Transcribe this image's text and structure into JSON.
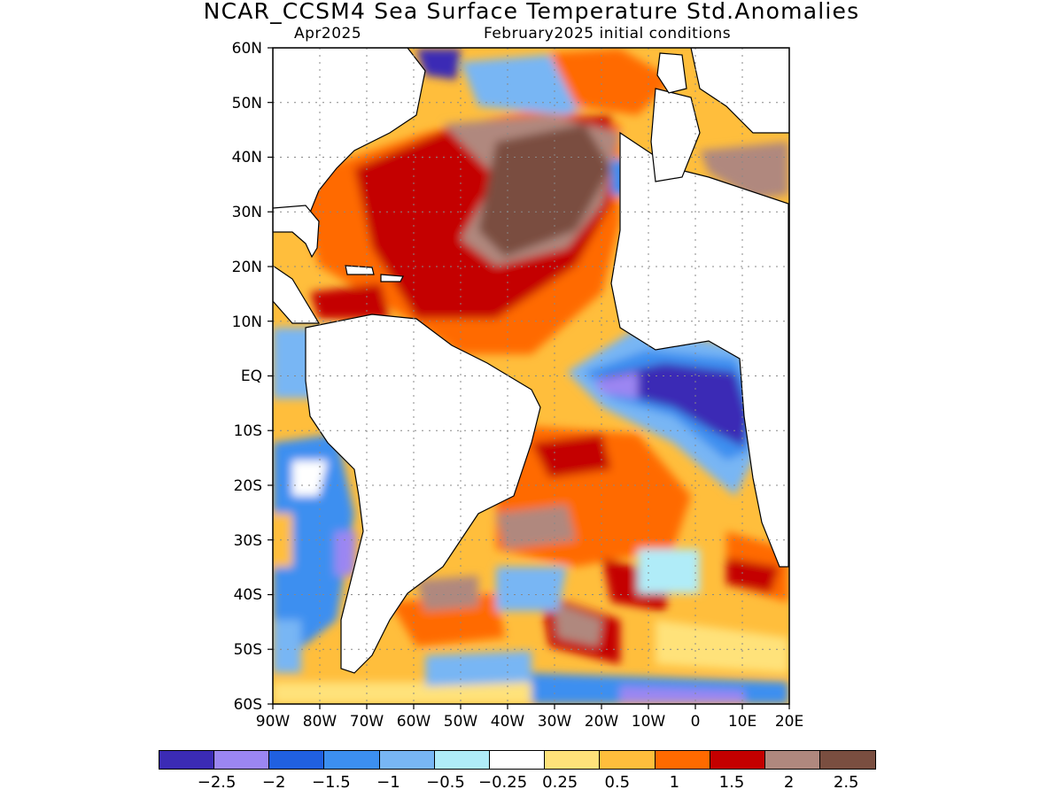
{
  "title": "NCAR_CCSM4 Sea Surface Temperature Std.Anomalies",
  "subtitle_left": "Apr2025",
  "subtitle_right": "February2025 initial conditions",
  "lat_labels": [
    "60N",
    "50N",
    "40N",
    "30N",
    "20N",
    "10N",
    "EQ",
    "10S",
    "20S",
    "30S",
    "40S",
    "50S",
    "60S"
  ],
  "lon_labels": [
    "90W",
    "80W",
    "70W",
    "60W",
    "50W",
    "40W",
    "30W",
    "20W",
    "10W",
    "0",
    "10E",
    "20E"
  ],
  "colorbar": {
    "colors": [
      "#3b2bb5",
      "#9b86f2",
      "#2060e0",
      "#3c8ff0",
      "#78b6f4",
      "#b0ecf8",
      "#ffffff",
      "#ffe27a",
      "#ffbe3c",
      "#ff6a00",
      "#c40000",
      "#b0887e",
      "#7a4e40"
    ],
    "labels": [
      "-2.5",
      "-2",
      "-1.5",
      "-1",
      "-0.5",
      "-0.25",
      "0.25",
      "0.5",
      "1",
      "1.5",
      "2",
      "2.5"
    ]
  }
}
